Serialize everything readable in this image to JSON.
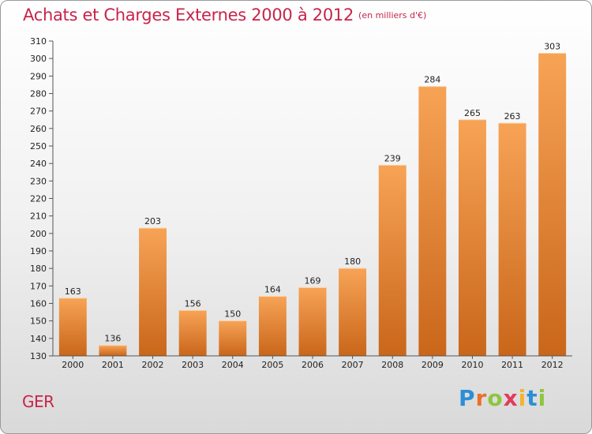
{
  "header": {
    "title": "Achats et Charges Externes 2000 à 2012",
    "unit": "(en milliers d'€)"
  },
  "footer": {
    "place": "GER",
    "logo": "Proxiti"
  },
  "colors": {
    "title": "#c8244a",
    "bar_top": "#f7a356",
    "bar_bottom": "#c9661a"
  },
  "chart_data": {
    "type": "bar",
    "title": "Achats et Charges Externes 2000 à 2012",
    "subtitle": "(en milliers d'€)",
    "xlabel": "",
    "ylabel": "",
    "categories": [
      "2000",
      "2001",
      "2002",
      "2003",
      "2004",
      "2005",
      "2006",
      "2007",
      "2008",
      "2009",
      "2010",
      "2011",
      "2012"
    ],
    "values": [
      163,
      136,
      203,
      156,
      150,
      164,
      169,
      180,
      239,
      284,
      265,
      263,
      303
    ],
    "ylim": [
      130,
      310
    ],
    "ytick_step": 10,
    "grid": false,
    "data_labels": true
  }
}
